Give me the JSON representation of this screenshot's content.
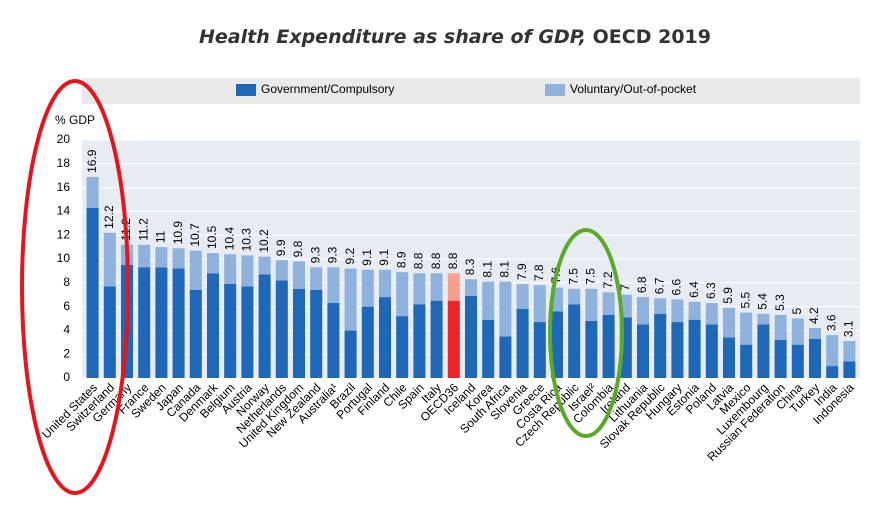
{
  "chart_data": {
    "type": "stacked_bar",
    "title": "Health Expenditure as share of GDP,",
    "title_suffix": "OECD 2019",
    "y_label": "% GDP",
    "categories": [
      "United States",
      "Switzerland",
      "Germany",
      "France",
      "Sweden",
      "Japan",
      "Canada",
      "Denmark",
      "Belgium",
      "Austria",
      "Norway",
      "Netherlands",
      "United Kingdom",
      "New Zealand",
      "Australia¹",
      "Brazil",
      "Portugal",
      "Finland",
      "Chile",
      "Spain",
      "Italy",
      "OECD36",
      "Iceland",
      "Korea",
      "South Africa",
      "Slovenia",
      "Greece",
      "Costa Rica",
      "Czech Republic",
      "Israel²",
      "Colombia",
      "Ireland",
      "Lithuania",
      "Slovak Republic",
      "Hungary",
      "Estonia",
      "Poland",
      "Latvia",
      "Mexico",
      "Luxembourg",
      "Russian Federation",
      "China",
      "Turkey",
      "India",
      "Indonesia"
    ],
    "series": [
      {
        "name": "Government/Compulsory",
        "color": "#1f68b8",
        "highlight_color": "#e8262a",
        "values": [
          14.3,
          7.7,
          9.5,
          9.3,
          9.3,
          9.2,
          7.4,
          8.8,
          7.9,
          7.7,
          8.7,
          8.2,
          7.5,
          7.4,
          6.3,
          4.0,
          6.0,
          6.8,
          5.2,
          6.2,
          6.5,
          6.5,
          6.9,
          4.9,
          3.5,
          5.8,
          4.7,
          5.6,
          6.2,
          4.8,
          5.3,
          5.1,
          4.5,
          5.4,
          4.7,
          4.9,
          4.5,
          3.4,
          2.8,
          4.5,
          3.2,
          2.8,
          3.3,
          1.0,
          1.4
        ]
      },
      {
        "name": "Voluntary/Out-of-pocket",
        "color": "#8fb2dd",
        "highlight_color": "#f4a08c",
        "values": [
          2.6,
          4.5,
          1.7,
          1.9,
          1.7,
          1.7,
          3.3,
          1.7,
          2.5,
          2.6,
          1.5,
          1.7,
          2.3,
          1.9,
          3.0,
          5.2,
          3.1,
          2.3,
          3.7,
          2.6,
          2.3,
          2.3,
          1.4,
          3.2,
          4.6,
          2.1,
          3.1,
          2.0,
          1.3,
          2.7,
          1.9,
          1.9,
          2.3,
          1.3,
          1.9,
          1.5,
          1.8,
          2.5,
          2.7,
          0.9,
          2.1,
          2.2,
          0.9,
          2.6,
          1.7
        ]
      }
    ],
    "totals": [
      16.9,
      12.2,
      11.2,
      11.2,
      11.0,
      10.9,
      10.7,
      10.5,
      10.4,
      10.3,
      10.2,
      9.9,
      9.8,
      9.3,
      9.3,
      9.2,
      9.1,
      9.1,
      8.9,
      8.8,
      8.8,
      8.8,
      8.3,
      8.1,
      8.1,
      7.9,
      7.8,
      7.6,
      7.5,
      7.5,
      7.2,
      7.0,
      6.8,
      6.7,
      6.6,
      6.4,
      6.3,
      5.9,
      5.5,
      5.4,
      5.3,
      5.0,
      4.2,
      3.6,
      3.1
    ],
    "highlight": "OECD36",
    "ylim": [
      0,
      20
    ],
    "yticks": [
      0,
      2,
      4,
      6,
      8,
      10,
      12,
      14,
      16,
      18,
      20
    ],
    "grid": true
  }
}
